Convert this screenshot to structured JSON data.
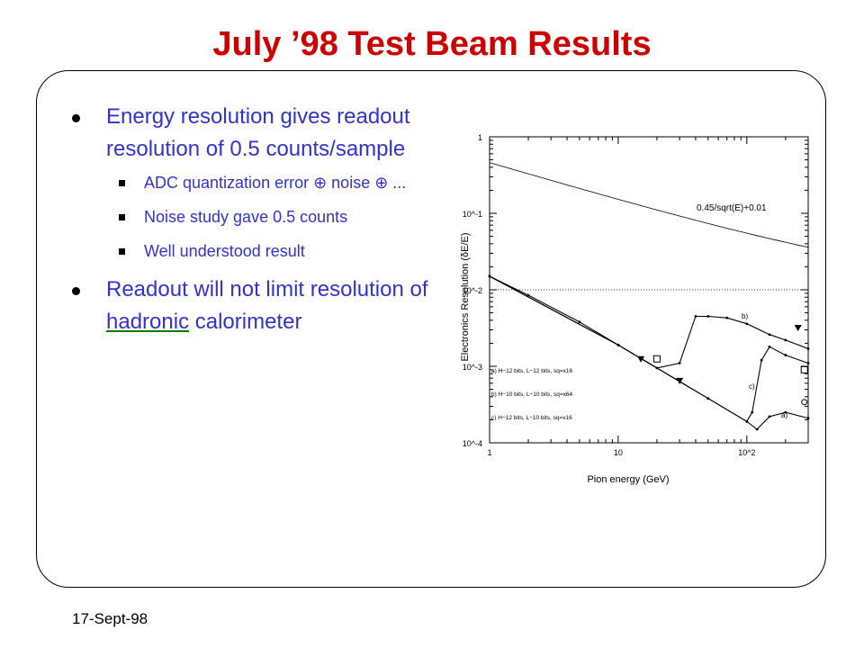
{
  "title": "July ’98 Test Beam Results",
  "footer_date": "17-Sept-98",
  "bullets": [
    {
      "text": "Energy resolution gives readout resolution of 0.5 counts/sample"
    },
    {
      "text": "Readout will not limit resolution of ",
      "link": "hadronic",
      "text_after": " calorimeter"
    }
  ],
  "sub_bullets": [
    "ADC quantization error ⊕ noise ⊕ ...",
    "Noise study gave 0.5 counts",
    "Well understood result"
  ],
  "chart_data": {
    "type": "line",
    "xscale": "log",
    "yscale": "log",
    "xlabel": "Pion energy (GeV)",
    "ylabel": "Electronics Resolution (δE/E)",
    "xlim": [
      1,
      300
    ],
    "ylim": [
      0.0001,
      1
    ],
    "x_ticks": [
      "1",
      "10",
      "10^2"
    ],
    "y_ticks": [
      "10^-4",
      "10^-3",
      "10^-2",
      "10^-1",
      "1"
    ],
    "reference_line": {
      "label": "0.45/sqrt(E)+0.01",
      "formula": "0.45/sqrt(E)+0.01"
    },
    "dotted_level": 0.01,
    "legend": [
      "a) H−12 bits, L−12 bits, sq=x16",
      "b) H−10 bits, L−10 bits, sq=x64",
      "c) H−12 bits, L−10 bits, sq=x16"
    ],
    "curve_labels": [
      "b)",
      "c)",
      "a)"
    ],
    "series": [
      {
        "name": "b)",
        "x": [
          1,
          2,
          5,
          10,
          20,
          30,
          40,
          50,
          70,
          100,
          150,
          200,
          300
        ],
        "y": [
          0.015,
          0.0085,
          0.0038,
          0.0019,
          0.00095,
          0.0011,
          0.0045,
          0.0045,
          0.0043,
          0.0036,
          0.0026,
          0.0022,
          0.0017
        ]
      },
      {
        "name": "c)",
        "x": [
          1,
          10,
          50,
          100,
          110,
          130,
          150,
          200,
          300
        ],
        "y": [
          0.015,
          0.0019,
          0.00038,
          0.00019,
          0.00025,
          0.0012,
          0.0018,
          0.0014,
          0.0011
        ]
      },
      {
        "name": "a)",
        "x": [
          1,
          10,
          50,
          100,
          120,
          150,
          200,
          300
        ],
        "y": [
          0.015,
          0.0019,
          0.00038,
          0.00019,
          0.00015,
          0.00022,
          0.00025,
          0.00021
        ]
      }
    ]
  }
}
